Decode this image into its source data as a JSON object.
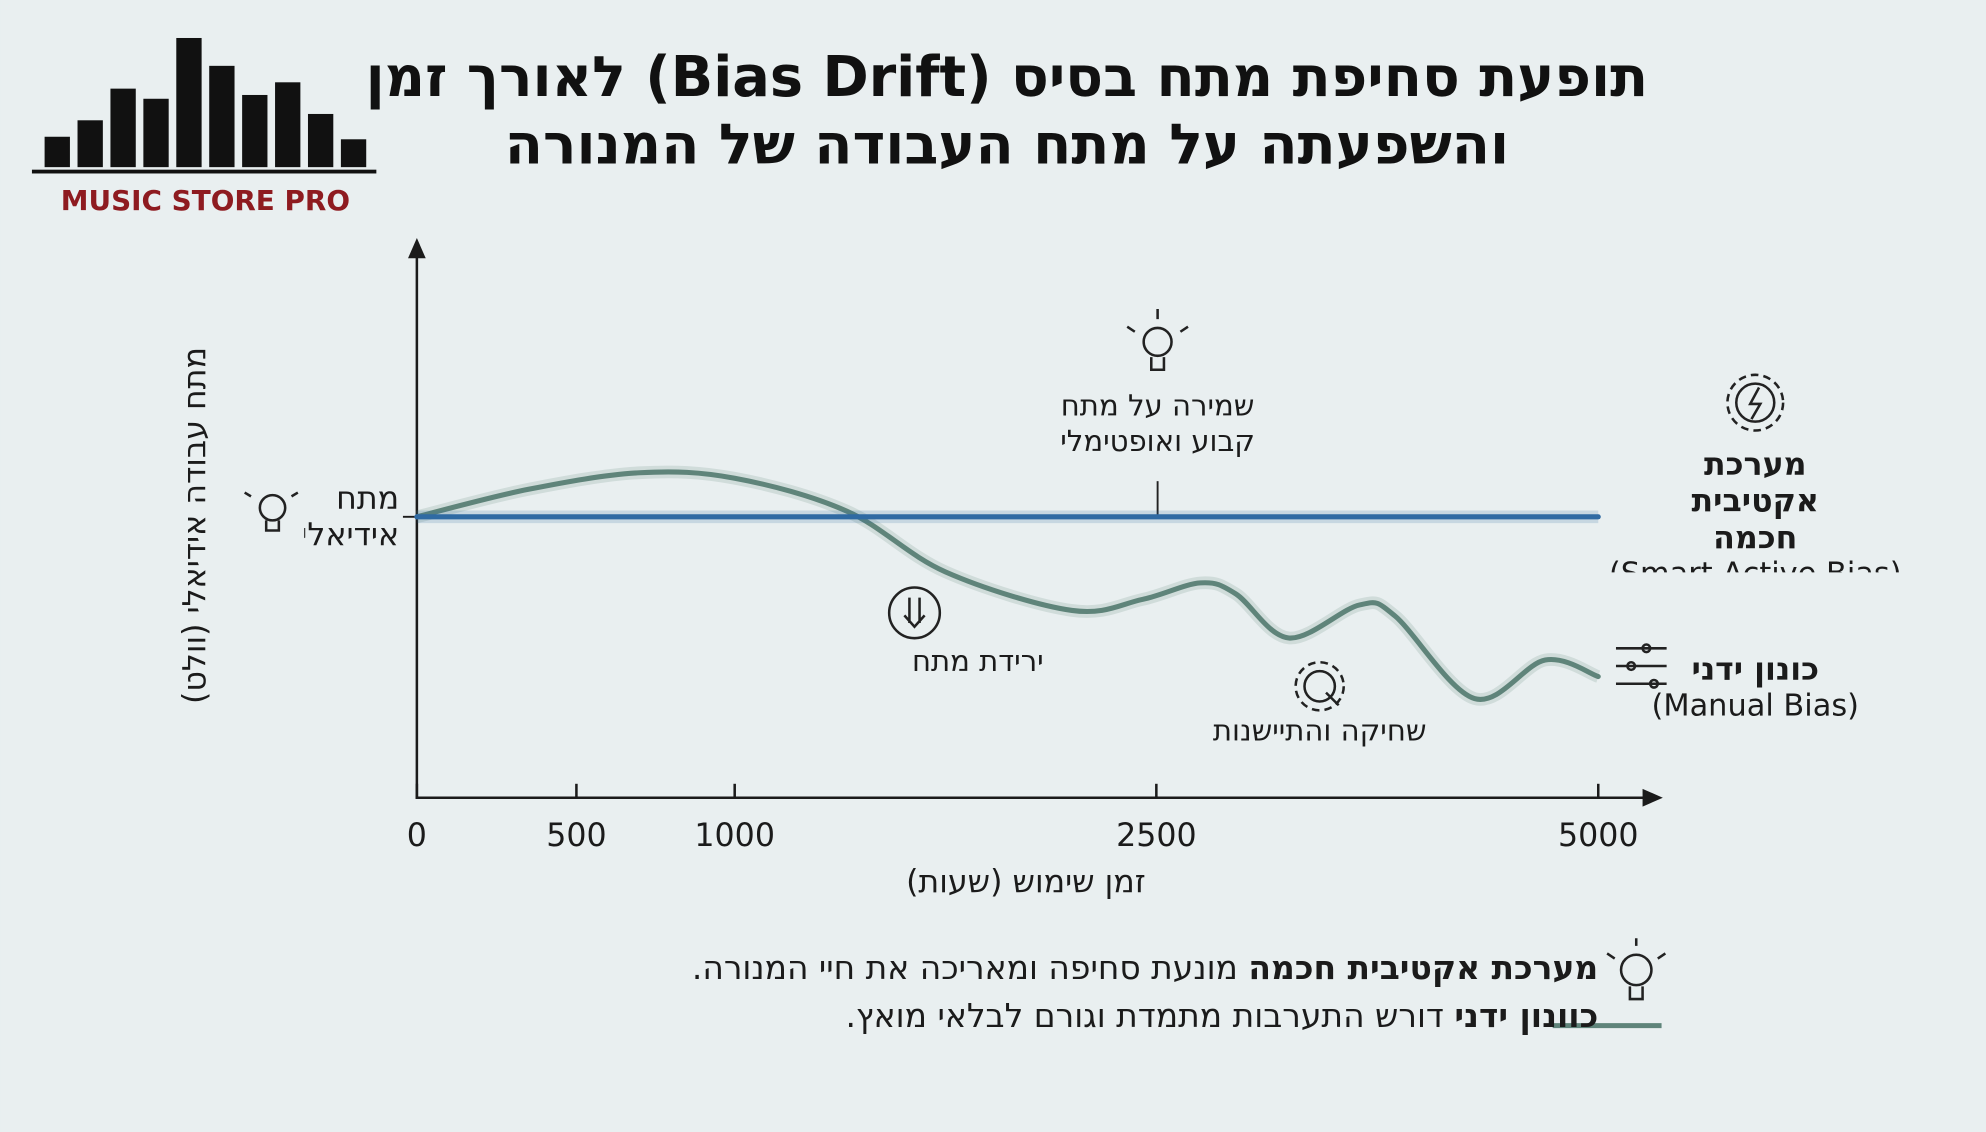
{
  "logo": {
    "text": "MUSIC STORE PRO"
  },
  "chart_data": {
    "type": "line",
    "title": [
      "תופעת סחיפת מתח בסיס (Bias Drift) לאורך זמן",
      "והשפעתה על מתח העבודה של המנורה"
    ],
    "xlabel": "זמן שימוש (שעות)",
    "ylabel": "מתח עבודה אידיאלי (וולט)",
    "xlim": [
      0,
      5000
    ],
    "xticks": [
      0,
      500,
      1000,
      2500,
      5000
    ],
    "ylim": [
      0,
      100
    ],
    "yticks": [
      {
        "value": 51,
        "label": "מתח אידיאלי"
      }
    ],
    "series": [
      {
        "name": "מערכת אקטיבית חכמה",
        "name_en": "(Smart Active Bias)",
        "color": "#2f6aa3",
        "x": [
          0,
          5000
        ],
        "values": [
          51,
          51
        ]
      },
      {
        "name": "כונון ידני",
        "name_en": "(Manual Bias)",
        "color": "#5f847a",
        "x": [
          0,
          350,
          700,
          1000,
          1400,
          1750,
          2200,
          2450,
          2750,
          2950,
          3250,
          3650,
          3850,
          4300,
          4700,
          5000
        ],
        "values": [
          51,
          56,
          59,
          58,
          52,
          41,
          34,
          36,
          39,
          37,
          29,
          35,
          33,
          18,
          25,
          22
        ]
      }
    ],
    "annotations": [
      {
        "text": [
          "שמירה על מתח",
          "קבוע ואופטימלי"
        ]
      },
      {
        "text": [
          "ירידת מתח"
        ]
      },
      {
        "text": [
          "שחיקה והתיישנות"
        ]
      }
    ],
    "notes": [
      {
        "bold": "מערכת אקטיבית חכמה",
        "text": "מונעת סחיפה ומאריכה את חיי המנורה."
      },
      {
        "bold": "כוונון ידני",
        "text": "דורש התערבות מתמדת וגורם לבלאי מואץ."
      }
    ]
  }
}
